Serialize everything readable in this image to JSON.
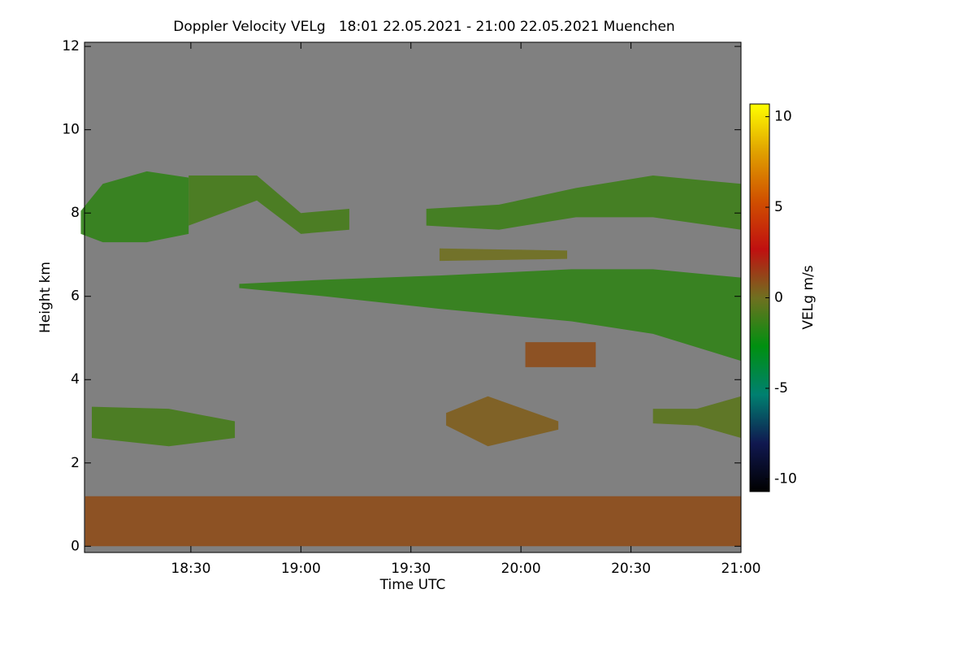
{
  "chart_data": {
    "type": "time-height",
    "title": "Doppler Velocity VELg   18:01 22.05.2021 - 21:00 22.05.2021 Muenchen",
    "xlabel": "Time UTC",
    "ylabel": "Height km",
    "xlim": [
      18.0167,
      21.0
    ],
    "xticks": [
      {
        "value": 18.5,
        "label": "18:30"
      },
      {
        "value": 19.0,
        "label": "19:00"
      },
      {
        "value": 19.5,
        "label": "19:30"
      },
      {
        "value": 20.0,
        "label": "20:00"
      },
      {
        "value": 20.5,
        "label": "20:30"
      },
      {
        "value": 21.0,
        "label": "21:00"
      }
    ],
    "ylim": [
      -0.15,
      12.1
    ],
    "yticks": [
      0,
      2,
      4,
      6,
      8,
      10,
      12
    ],
    "background": "#808080",
    "colorbar": {
      "label": "VELg m/s",
      "clim": [
        -10.7,
        10.7
      ],
      "ticks": [
        -10,
        -5,
        0,
        5,
        10
      ],
      "colormap": [
        "#000000",
        "#101850",
        "#008070",
        "#009010",
        "#707020",
        "#c01010",
        "#d05000",
        "#e0a000",
        "#ffff00"
      ]
    },
    "layers": [
      {
        "time": [
          18.0,
          18.1,
          18.3,
          18.49
        ],
        "top": [
          8.05,
          8.7,
          9.0,
          8.85
        ],
        "bottom": [
          7.5,
          7.3,
          7.3,
          7.5
        ],
        "velocity": -1.5
      },
      {
        "time": [
          18.49,
          18.8,
          19.0,
          19.22
        ],
        "top": [
          8.9,
          8.9,
          8.0,
          8.1
        ],
        "bottom": [
          7.7,
          8.3,
          7.5,
          7.6
        ],
        "velocity": -1.0
      },
      {
        "time": [
          18.72,
          19.11,
          19.63,
          20.23,
          20.6,
          21.0
        ],
        "top": [
          6.3,
          6.4,
          6.5,
          6.65,
          6.65,
          6.45
        ],
        "bottom": [
          6.2,
          6.0,
          5.7,
          5.4,
          5.1,
          4.45
        ],
        "velocity": -1.5
      },
      {
        "time": [
          19.57,
          19.9,
          20.25,
          20.6,
          21.0
        ],
        "top": [
          8.1,
          8.2,
          8.6,
          8.9,
          8.7
        ],
        "bottom": [
          7.7,
          7.6,
          7.9,
          7.9,
          7.6
        ],
        "velocity": -1.2
      },
      {
        "time": [
          19.63,
          20.21
        ],
        "top": [
          7.15,
          7.1
        ],
        "bottom": [
          6.85,
          6.9
        ],
        "velocity": 0
      },
      {
        "time": [
          20.02,
          20.34
        ],
        "top": [
          4.9,
          4.9
        ],
        "bottom": [
          4.3,
          4.3
        ],
        "velocity": 1
      },
      {
        "time": [
          18.05,
          18.4,
          18.7
        ],
        "top": [
          3.35,
          3.3,
          3.0
        ],
        "bottom": [
          2.6,
          2.4,
          2.6
        ],
        "velocity": -1
      },
      {
        "time": [
          19.66,
          19.85,
          20.17
        ],
        "top": [
          3.2,
          3.6,
          3.0
        ],
        "bottom": [
          2.9,
          2.4,
          2.8
        ],
        "velocity": 0.5
      },
      {
        "time": [
          20.6,
          20.8,
          21.0
        ],
        "top": [
          3.3,
          3.3,
          3.6
        ],
        "bottom": [
          2.95,
          2.9,
          2.6
        ],
        "velocity": -0.5
      },
      {
        "time": [
          18.02,
          21.0
        ],
        "top": [
          1.2,
          1.2
        ],
        "bottom": [
          0,
          0
        ],
        "velocity": 1
      }
    ]
  }
}
